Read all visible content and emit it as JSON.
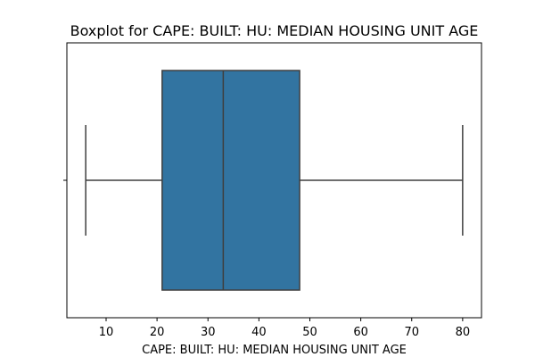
{
  "chart_data": {
    "type": "boxplot",
    "title": "Boxplot for CAPE: BUILT: HU: MEDIAN HOUSING UNIT AGE",
    "xlabel": "CAPE: BUILT: HU: MEDIAN HOUSING UNIT AGE",
    "ylabel": "",
    "orientation": "horizontal",
    "xlim": [
      2.3,
      83.7
    ],
    "x_ticks": [
      10,
      20,
      30,
      40,
      50,
      60,
      70,
      80
    ],
    "grid": false,
    "legend": "none",
    "box": {
      "whisker_low": 6,
      "q1": 21,
      "median": 33,
      "q3": 48,
      "whisker_high": 80
    },
    "colors": {
      "box_fill": "#3274a1",
      "lines": "#3f3f3f",
      "axes": "#000000"
    }
  }
}
